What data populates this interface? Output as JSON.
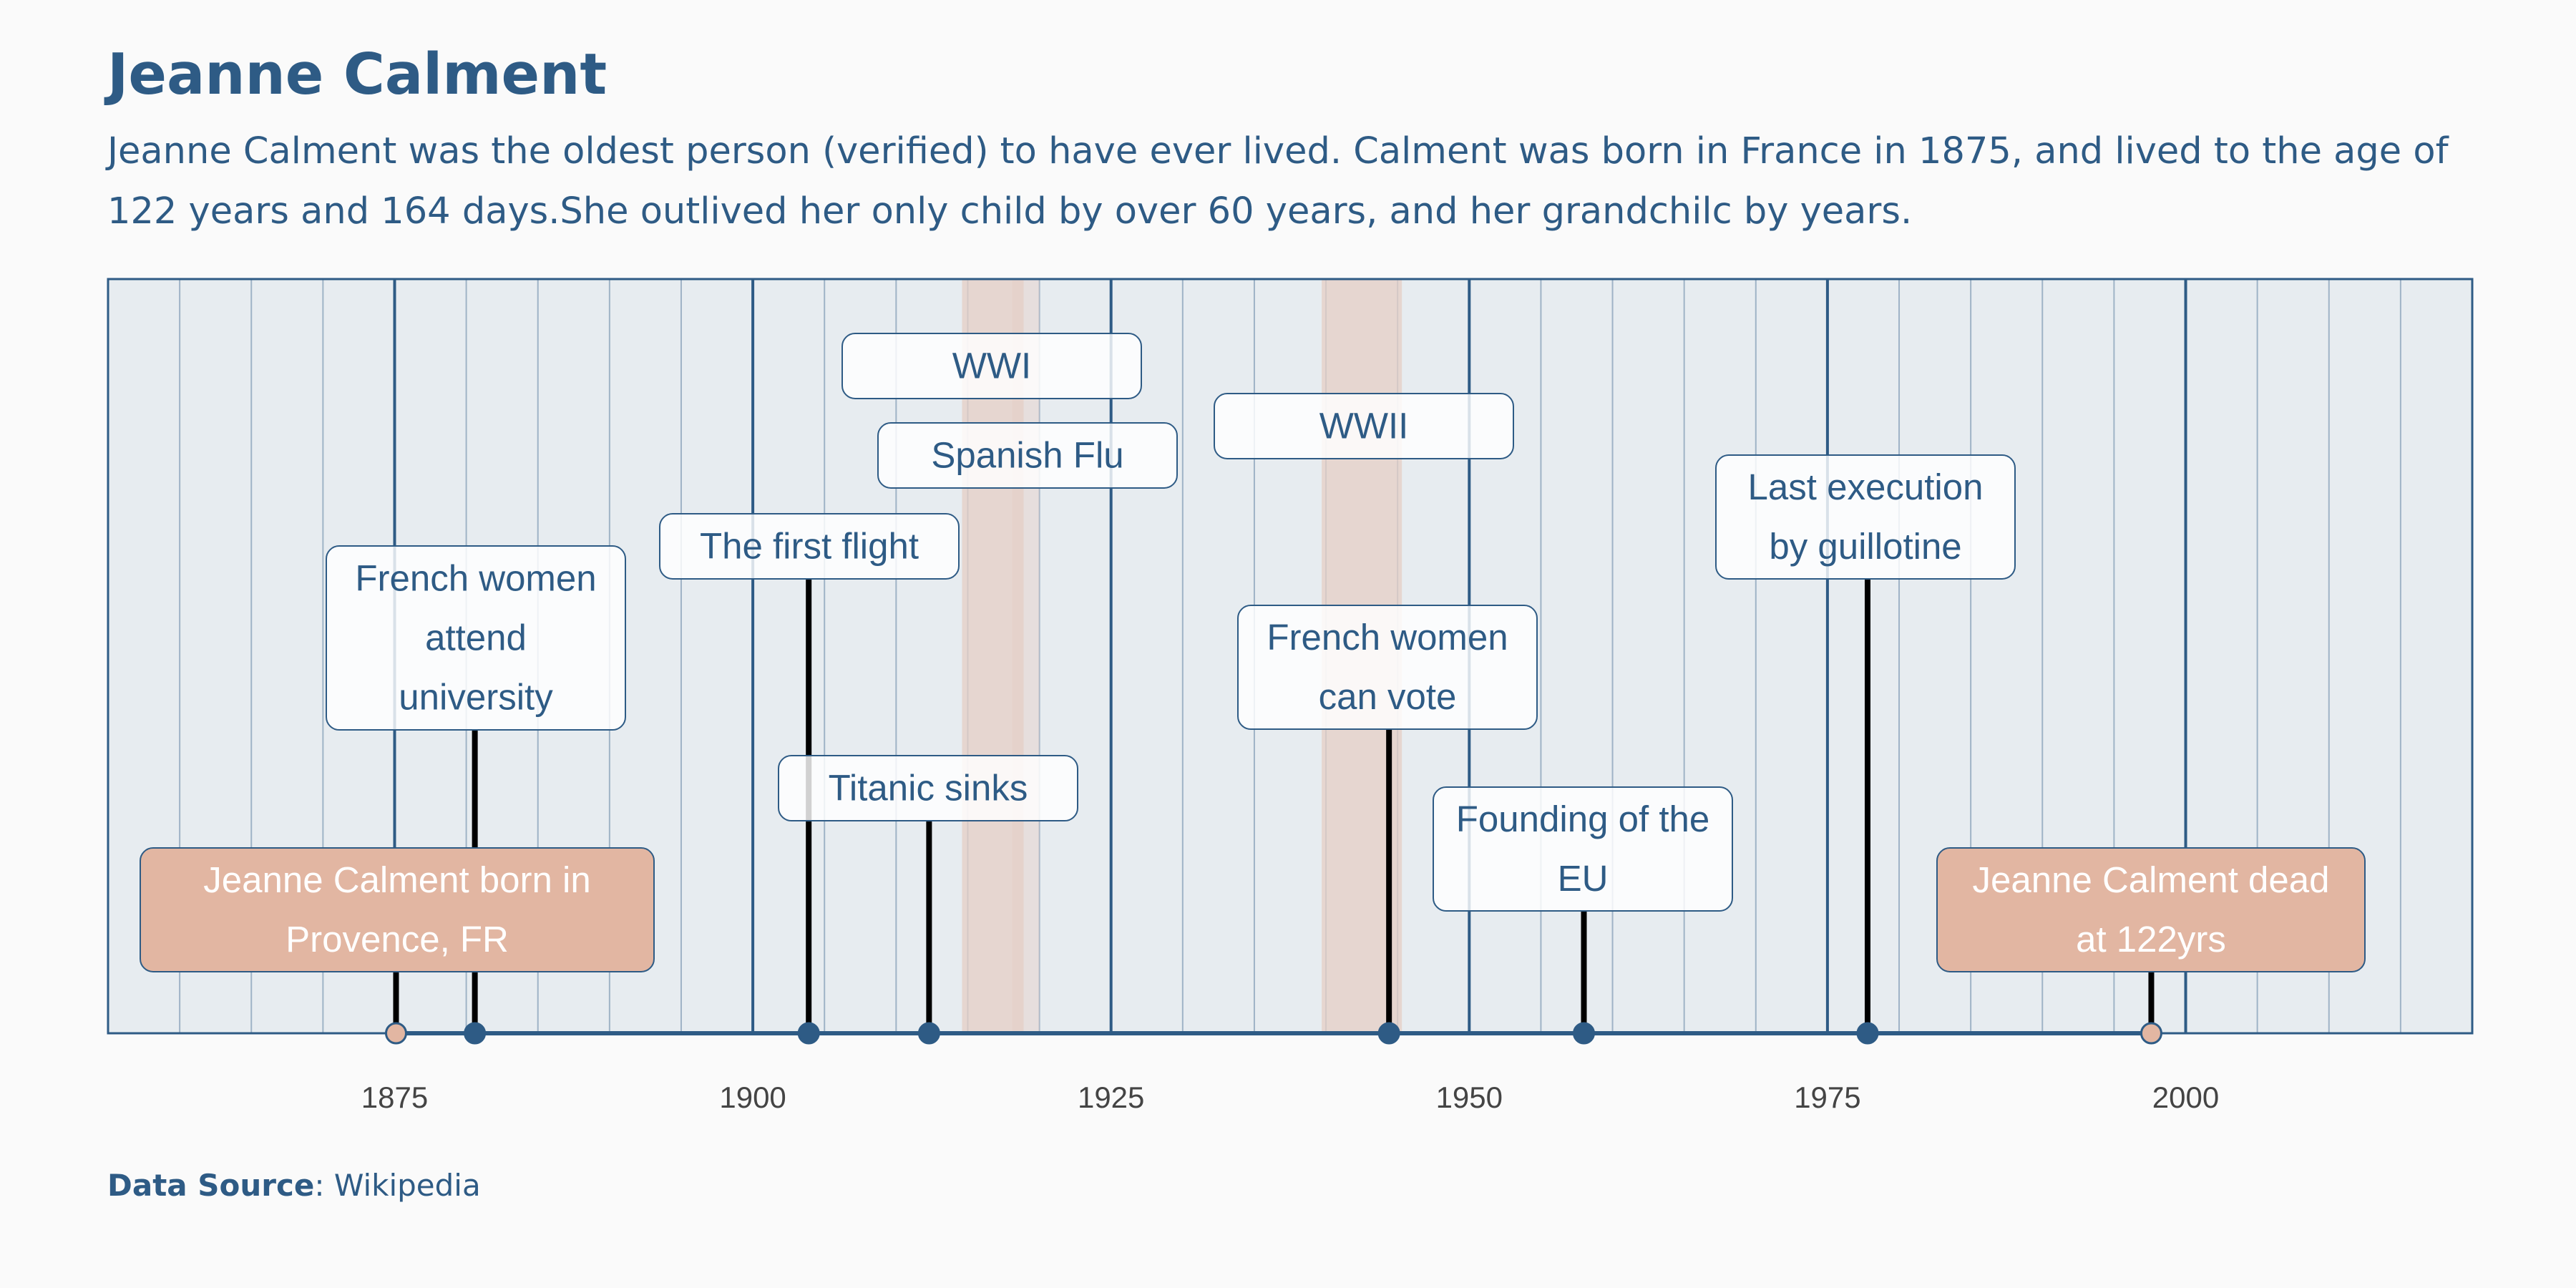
{
  "title": "Jeanne Calment",
  "subtitle": "Jeanne Calment was the oldest person (verified) to have ever lived. Calment was born in France in 1875, and lived to the age of 122 years and 164 days.She outlived her only child by over 60 years, and her grandchilc by years.",
  "source": {
    "label": "Data Source",
    "separator": ": ",
    "value": "Wikipedia"
  },
  "colors": {
    "navy": "#2e5b85",
    "band": "#e5cfc6",
    "lifeEvent": "#e2b6a2",
    "plotBg": "#e7ecf0",
    "label": "#ffffff"
  },
  "chart_data": {
    "type": "timeline",
    "xlim": [
      1855,
      2020
    ],
    "ticks": [
      "1875",
      "1900",
      "1925",
      "1950",
      "1975",
      "2000"
    ],
    "ticks_values": [
      1875,
      1900,
      1925,
      1950,
      1975,
      2000
    ],
    "periods": [
      {
        "label": "WWI",
        "start": 1914.6,
        "end": 1918.9
      },
      {
        "label": "Spanish Flu",
        "start": 1918.1,
        "end": 1920.0
      },
      {
        "label": "WWII",
        "start": 1939.7,
        "end": 1945.3
      }
    ],
    "events": [
      {
        "year": 1875.1,
        "label": "Jeanne Calment born in Provence, FR",
        "lines": [
          "Jeanne Calment born in",
          "Provence, FR"
        ],
        "kind": "life"
      },
      {
        "year": 1880.6,
        "label": "French women attend university",
        "lines": [
          "French women",
          "attend",
          "university"
        ],
        "kind": "event"
      },
      {
        "year": 1903.9,
        "label": "The first flight",
        "lines": [
          "The first flight"
        ],
        "kind": "event"
      },
      {
        "year": 1912.3,
        "label": "Titanic sinks",
        "lines": [
          "Titanic sinks"
        ],
        "kind": "event"
      },
      {
        "year": 1944.4,
        "label": "French women can vote",
        "lines": [
          "French women",
          "can vote"
        ],
        "kind": "event"
      },
      {
        "year": 1958.0,
        "label": "Founding of the EU",
        "lines": [
          "Founding of the",
          "EU"
        ],
        "kind": "event"
      },
      {
        "year": 1977.8,
        "label": "Last execution by guillotine",
        "lines": [
          "Last execution",
          "by guillotine"
        ],
        "kind": "event"
      },
      {
        "year": 1997.6,
        "label": "Jeanne Calment dead at 122yrs",
        "lines": [
          "Jeanne Calment dead",
          "at 122yrs"
        ],
        "kind": "life"
      }
    ]
  }
}
